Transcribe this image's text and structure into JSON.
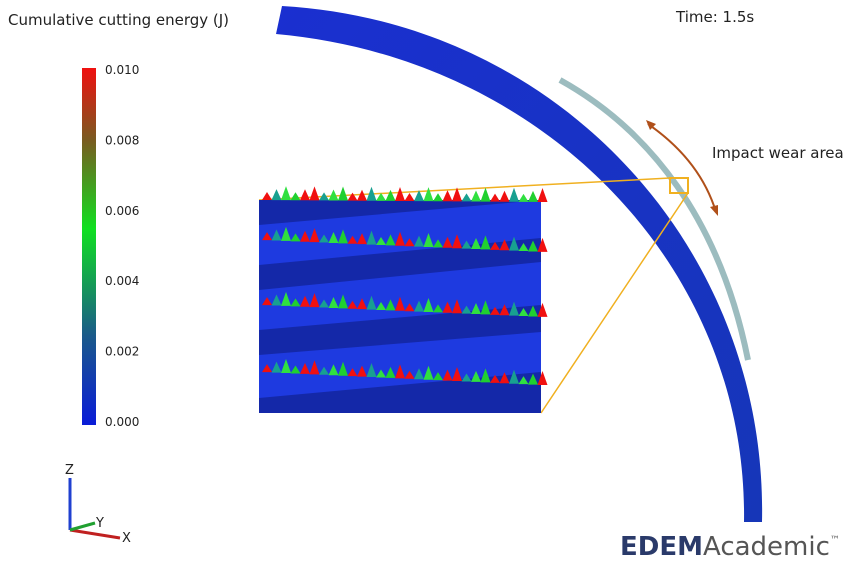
{
  "legend": {
    "title": "Cumulative cutting energy (J)",
    "ticks": [
      "0.010",
      "0.008",
      "0.006",
      "0.004",
      "0.002",
      "0.000"
    ]
  },
  "time": "Time: 1.5s",
  "annotation": "Impact wear area",
  "axes": {
    "z": "Z",
    "y": "Y",
    "x": "X"
  },
  "logo": {
    "brand": "EDEM",
    "product": "Academic",
    "mark": "™"
  }
}
